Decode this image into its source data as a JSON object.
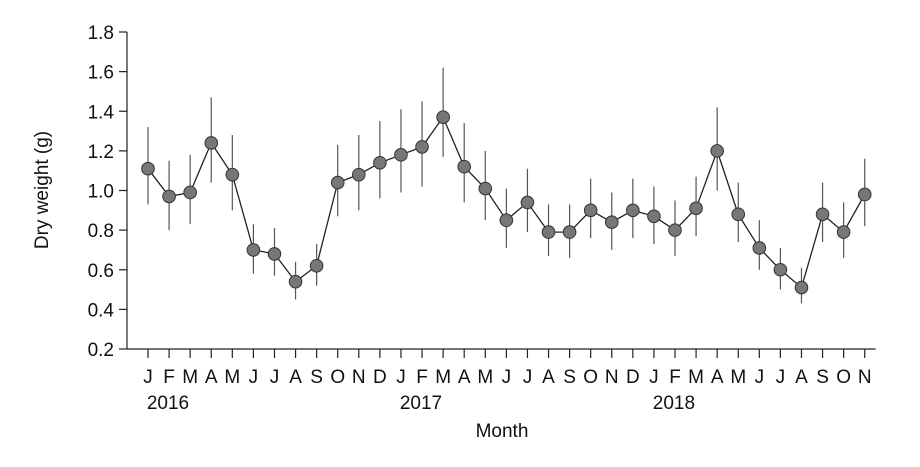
{
  "chart_data": {
    "type": "line",
    "xlabel": "Month",
    "ylabel": "Dry weight (g)",
    "ylim": [
      0.2,
      1.8
    ],
    "yticks": [
      "0.2",
      "0.4",
      "0.6",
      "0.8",
      "1.0",
      "1.2",
      "1.4",
      "1.6",
      "1.8"
    ],
    "grid": false,
    "categories": [
      "J",
      "F",
      "M",
      "A",
      "M",
      "J",
      "J",
      "A",
      "S",
      "O",
      "N",
      "D",
      "J",
      "F",
      "M",
      "A",
      "M",
      "J",
      "J",
      "A",
      "S",
      "O",
      "N",
      "D",
      "J",
      "F",
      "M",
      "A",
      "M",
      "J",
      "J",
      "A",
      "S",
      "O",
      "N"
    ],
    "years": [
      {
        "label": "2016",
        "start_index": 0
      },
      {
        "label": "2017",
        "start_index": 12
      },
      {
        "label": "2018",
        "start_index": 24
      }
    ],
    "series": [
      {
        "values": [
          1.11,
          0.97,
          0.99,
          1.24,
          1.08,
          0.7,
          0.68,
          0.54,
          0.62,
          1.04,
          1.08,
          1.14,
          1.18,
          1.22,
          1.37,
          1.12,
          1.01,
          0.85,
          0.94,
          0.79,
          0.79,
          0.9,
          0.84,
          0.9,
          0.87,
          0.8,
          0.91,
          1.2,
          0.88,
          0.71,
          0.6,
          0.51,
          0.88,
          0.79,
          0.98
        ],
        "error_low": [
          0.93,
          0.8,
          0.83,
          1.04,
          0.9,
          0.58,
          0.57,
          0.45,
          0.52,
          0.87,
          0.9,
          0.96,
          0.99,
          1.02,
          1.17,
          0.94,
          0.85,
          0.71,
          0.79,
          0.67,
          0.66,
          0.76,
          0.7,
          0.76,
          0.73,
          0.67,
          0.77,
          1.0,
          0.74,
          0.6,
          0.5,
          0.43,
          0.74,
          0.66,
          0.82
        ],
        "error_high": [
          1.32,
          1.15,
          1.18,
          1.47,
          1.28,
          0.83,
          0.81,
          0.64,
          0.73,
          1.23,
          1.28,
          1.35,
          1.41,
          1.45,
          1.62,
          1.34,
          1.2,
          1.01,
          1.11,
          0.93,
          0.93,
          1.06,
          0.99,
          1.06,
          1.02,
          0.95,
          1.07,
          1.42,
          1.04,
          0.85,
          0.71,
          0.61,
          1.04,
          0.94,
          1.16
        ]
      }
    ],
    "colors": {
      "marker_fill": "#777777",
      "marker_stroke": "#333333",
      "line": "#222222",
      "error_bar": "#555555",
      "axis": "#222222"
    }
  }
}
